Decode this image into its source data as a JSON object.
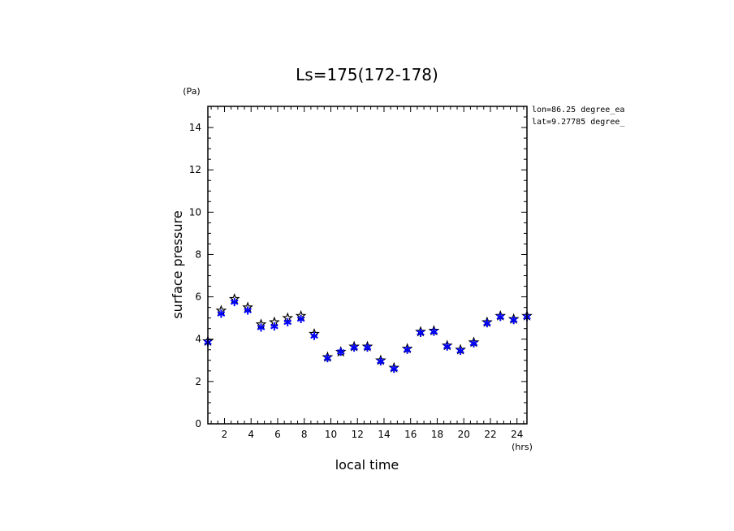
{
  "chart_data": {
    "type": "scatter",
    "title": "Ls=175(172-178)",
    "xlabel": "local time",
    "ylabel": "surface pressure",
    "x_unit": "(hrs)",
    "y_unit": "(Pa)",
    "xlim": [
      0.75,
      24.75
    ],
    "ylim": [
      0,
      15
    ],
    "x_ticks": [
      2,
      4,
      6,
      8,
      10,
      12,
      14,
      16,
      18,
      20,
      22,
      24
    ],
    "y_ticks": [
      0,
      2,
      4,
      6,
      8,
      10,
      12,
      14
    ],
    "annotations": [
      "lon=86.25 degree_ea",
      "lat=9.27785 degree_"
    ],
    "grid": false,
    "legend": "none",
    "series": [
      {
        "marker": "star",
        "color": "#000000",
        "x": [
          0.75,
          1.75,
          2.75,
          3.75,
          4.75,
          5.75,
          6.75,
          7.75,
          8.75,
          9.75,
          10.75,
          11.75,
          12.75,
          13.75,
          14.75,
          15.75,
          16.75,
          17.75,
          18.75,
          19.75,
          20.75,
          21.75,
          22.75,
          23.75,
          24.75
        ],
        "y": [
          3.9,
          5.35,
          5.9,
          5.5,
          4.7,
          4.8,
          5.0,
          5.1,
          4.25,
          3.15,
          3.4,
          3.65,
          3.65,
          3.0,
          2.65,
          3.55,
          4.35,
          4.4,
          3.7,
          3.5,
          3.85,
          4.8,
          5.1,
          4.95,
          5.1
        ]
      },
      {
        "marker": "asterisk",
        "color": "#0000ff",
        "x": [
          0.75,
          1.75,
          2.75,
          3.75,
          4.75,
          5.75,
          6.75,
          7.75,
          8.75,
          9.75,
          10.75,
          11.75,
          12.75,
          13.75,
          14.75,
          15.75,
          16.75,
          17.75,
          18.75,
          19.75,
          20.75,
          21.75,
          22.75,
          23.75,
          24.75
        ],
        "y": [
          3.85,
          5.2,
          5.75,
          5.35,
          4.55,
          4.6,
          4.8,
          4.95,
          4.15,
          3.1,
          3.4,
          3.6,
          3.6,
          2.95,
          2.6,
          3.5,
          4.3,
          4.35,
          3.65,
          3.45,
          3.8,
          4.75,
          5.05,
          4.9,
          5.05
        ]
      }
    ]
  }
}
